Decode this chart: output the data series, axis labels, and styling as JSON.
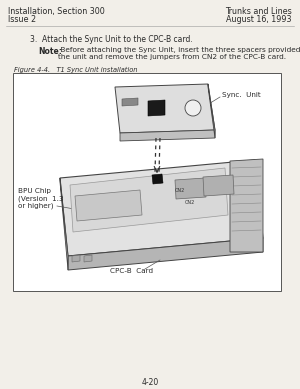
{
  "bg_color": "#f2efe9",
  "text_color": "#2a2a2a",
  "header_left_line1": "Installation, Section 300",
  "header_left_line2": "Issue 2",
  "header_right_line1": "Trunks and Lines",
  "header_right_line2": "August 16, 1993",
  "step3_text": "3.  Attach the Sync Unit to the CPC-B card.",
  "note_bold": "Note:",
  "note_text": " Before attaching the Sync Unit, insert the three spacers provided with\nthe unit and remove the jumpers from CN2 of the CPC-B card.",
  "figure_caption": "Figure 4-4.   T1 Sync Unit installation",
  "label_sync_unit": "Sync.  Unit",
  "label_bpu_chip": "BPU Chip\n(Version  1.3\nor higher)",
  "label_cpc_b": "CPC-B  Card",
  "footer_text": "4-20",
  "figure_box_color": "#ffffff",
  "figure_border_color": "#555555",
  "card_top_color": "#e2e2e2",
  "card_side_color": "#c8c8c8",
  "card_front_color": "#b5b5b5",
  "sync_top_color": "#dedede",
  "sync_side_color": "#c0c0c0",
  "chip_color": "#aaaaaa",
  "chip_dark": "#888888",
  "connector_color": "#1a1a1a",
  "line_color": "#444444"
}
